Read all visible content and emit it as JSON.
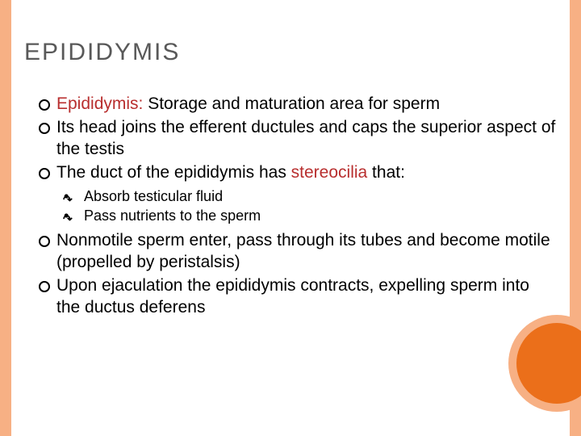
{
  "title": "EPIDIDYMIS",
  "colors": {
    "border": "#f7b084",
    "circle_outer": "#f7b084",
    "circle_inner": "#eb6f1a",
    "title_color": "#595959",
    "body_color": "#000000",
    "accent_color": "#b82e2e",
    "background": "#ffffff"
  },
  "typography": {
    "title_fontsize": 30,
    "level1_fontsize": 21,
    "level2_fontsize": 18,
    "font_family": "Arial"
  },
  "bullets": {
    "b1_pre": "Epididymis:",
    "b1_post": " Storage and maturation area for sperm",
    "b2": "Its head joins the efferent ductules and caps the superior aspect of the testis",
    "b3_pre": "The duct of the epididymis has ",
    "b3_accent": "stereocilia",
    "b3_post": " that:",
    "b3a": "Absorb testicular fluid",
    "b3b": "Pass nutrients to the sperm",
    "b4": "Nonmotile sperm enter, pass through its tubes and become motile (propelled by peristalsis)",
    "b5": "Upon ejaculation the epididymis contracts, expelling sperm into the ductus deferens"
  }
}
